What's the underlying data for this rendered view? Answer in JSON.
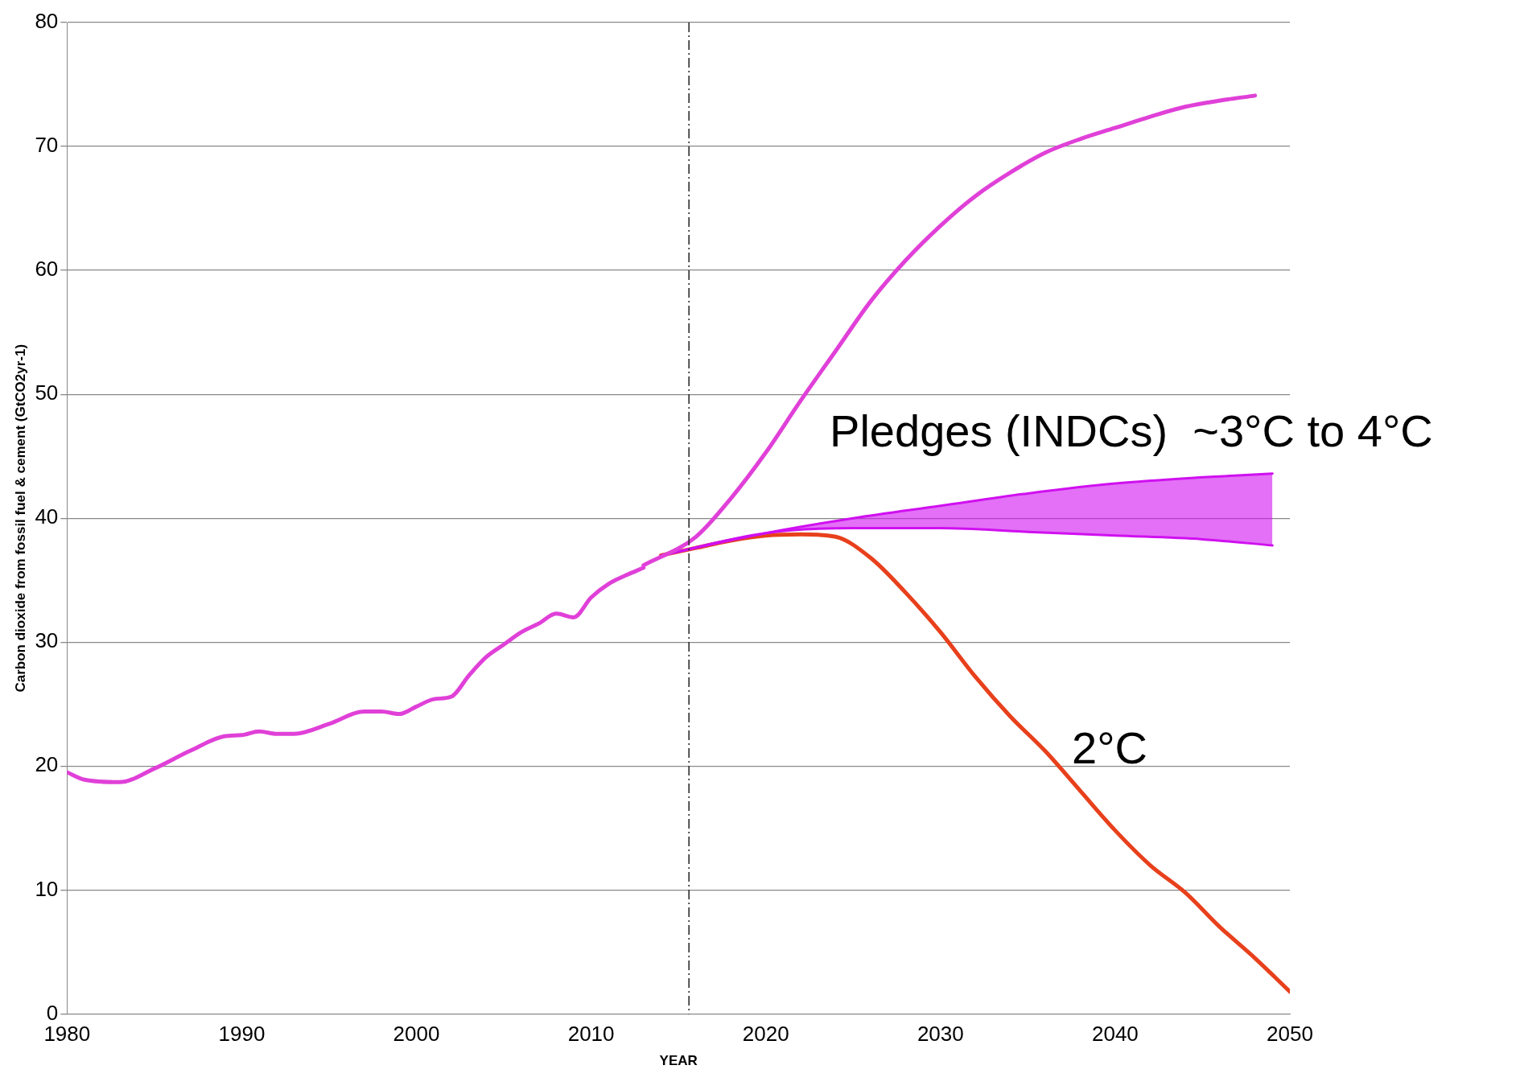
{
  "chart_data": {
    "type": "line",
    "xlabel": "YEAR",
    "ylabel": "Carbon dioxide from fossil fuel & cement (GtCO2yr-1)",
    "xlim": [
      1980,
      2050
    ],
    "xticks": [
      1980,
      1990,
      2000,
      2010,
      2020,
      2030,
      2040,
      2050
    ],
    "ylim": [
      0,
      80
    ],
    "yticks": [
      0,
      10,
      20,
      30,
      40,
      50,
      60,
      70,
      80
    ],
    "grid": "y",
    "line_style": "solid",
    "marker": "none",
    "series": [
      {
        "color": "#e040d8",
        "x": [
          1980,
          1981,
          1983,
          1985,
          1987,
          1989,
          1990,
          1991,
          1992,
          1993,
          1995,
          1997,
          1998,
          1999,
          2000,
          2001,
          2002,
          2003,
          2004,
          2005,
          2006,
          2007,
          2008,
          2009,
          2010,
          2011,
          2012,
          2013
        ],
        "values": [
          19.5,
          18.9,
          18.7,
          19.8,
          21.2,
          22.4,
          22.5,
          22.8,
          22.6,
          22.6,
          23.4,
          24.4,
          24.4,
          24.2,
          24.8,
          25.4,
          25.6,
          27.3,
          28.8,
          29.8,
          30.8,
          31.5,
          32.3,
          32.0,
          33.6,
          34.7,
          35.4,
          36.0
        ]
      },
      {
        "color": "#e040d8",
        "x": [
          2013,
          2016,
          2018,
          2020,
          2022,
          2024,
          2026,
          2028,
          2030,
          2032,
          2034,
          2036,
          2038,
          2040,
          2042,
          2044,
          2046,
          2048
        ],
        "values": [
          36.2,
          38.5,
          41.6,
          45.3,
          49.5,
          53.5,
          57.5,
          60.8,
          63.6,
          66.0,
          67.9,
          69.5,
          70.6,
          71.5,
          72.4,
          73.2,
          73.7,
          74.1
        ]
      },
      {
        "name": "Pledges (INDCs)  ~3°C to 4°C",
        "color": "#d010f0",
        "x": [
          2014,
          2020,
          2025,
          2030,
          2035,
          2040,
          2045,
          2049
        ],
        "values": [
          37.0,
          38.8,
          40.0,
          41.0,
          42.0,
          42.8,
          43.3,
          43.6
        ],
        "lower": [
          37.0,
          38.8,
          39.2,
          39.2,
          38.9,
          38.6,
          38.3,
          37.8
        ],
        "upper": [
          37.0,
          38.8,
          40.0,
          41.0,
          42.0,
          42.8,
          43.3,
          43.6
        ]
      },
      {
        "color": "#d010f0",
        "x": [
          2014,
          2020,
          2025,
          2030,
          2035,
          2040,
          2045,
          2049
        ],
        "values": [
          37.0,
          38.8,
          39.2,
          39.2,
          38.9,
          38.6,
          38.3,
          37.8
        ]
      },
      {
        "name": "2°C",
        "color": "#e8401c",
        "x": [
          2014,
          2016,
          2018,
          2020,
          2022,
          2024,
          2026,
          2028,
          2030,
          2032,
          2034,
          2036,
          2038,
          2040,
          2042,
          2044,
          2046,
          2048,
          2050
        ],
        "values": [
          37.0,
          37.6,
          38.2,
          38.6,
          38.7,
          38.5,
          36.8,
          34.0,
          30.8,
          27.2,
          24.0,
          21.2,
          18.0,
          14.8,
          12.0,
          9.8,
          7.0,
          4.5,
          1.8
        ]
      }
    ],
    "ref_lines": [
      {
        "axis": "x",
        "value": 2015.6,
        "color": "#202020",
        "line_style": "dashed"
      }
    ]
  }
}
